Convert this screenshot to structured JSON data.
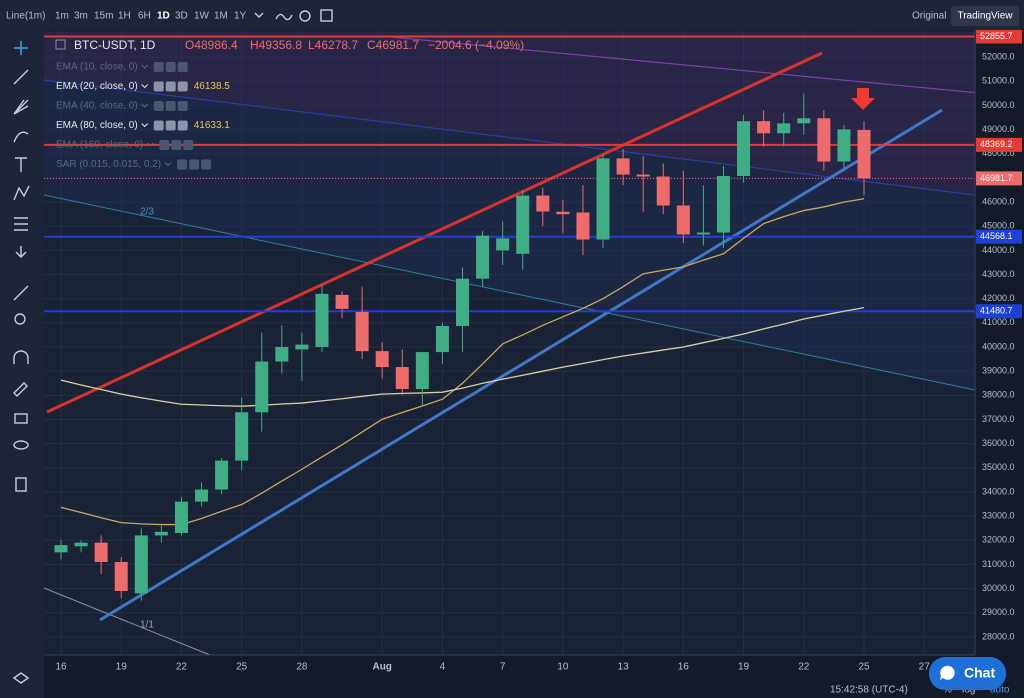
{
  "toolbar": {
    "chart_mode": "Line(1m)",
    "intervals": [
      "1m",
      "3m",
      "15m",
      "1H",
      "6H",
      "1D",
      "3D",
      "1W",
      "1M",
      "1Y"
    ],
    "active_interval": 5,
    "views": [
      "Original",
      "TradingView"
    ],
    "active_view": 1
  },
  "legend": {
    "symbol": "BTC-USDT, 1D",
    "open": "O48986.4",
    "high": "H49356.8",
    "low": "L46278.7",
    "close": "C46981.7",
    "change": "−2004.6 (−4.09%)",
    "indicators": [
      {
        "label": "EMA (10, close, 0)",
        "visible": false
      },
      {
        "label": "EMA (20, close, 0)",
        "value": 46138.5,
        "visible": true
      },
      {
        "label": "EMA (40, close, 0)",
        "visible": false
      },
      {
        "label": "EMA (80, close, 0)",
        "value": 41633.1,
        "visible": true
      },
      {
        "label": "EMA (160, close, 0)",
        "visible": false
      },
      {
        "label": "SAR (0.015, 0.015, 0.2)",
        "visible": false
      }
    ]
  },
  "chart_data": {
    "type": "candlestick",
    "up_color": "#3fae85",
    "down_color": "#ee6b6b",
    "categories": [
      "16",
      null,
      null,
      "19",
      null,
      null,
      "22",
      null,
      null,
      "25",
      null,
      null,
      "28",
      null,
      null,
      null,
      "Aug",
      null,
      null,
      "4",
      null,
      null,
      "7",
      null,
      null,
      "10",
      null,
      null,
      "13",
      null,
      null,
      "16",
      null,
      null,
      "19",
      null,
      null,
      "22",
      null,
      null,
      "25"
    ],
    "x_after": [
      "27"
    ],
    "open": [
      31500,
      31750,
      31900,
      31100,
      29800,
      32200,
      32300,
      33600,
      34100,
      35300,
      37300,
      39400,
      39900,
      40000,
      42160,
      41450,
      39830,
      39170,
      38260,
      39790,
      40870,
      42830,
      44000,
      43860,
      46270,
      45600,
      45570,
      44450,
      47810,
      47140,
      47060,
      45860,
      44660,
      44740,
      47080,
      49350,
      48850,
      49260,
      49470,
      47680,
      48986.4
    ],
    "high": [
      32000,
      32000,
      32200,
      31300,
      32500,
      32600,
      33800,
      34400,
      35400,
      37900,
      40600,
      40900,
      40600,
      42600,
      42300,
      42500,
      40200,
      39900,
      39800,
      41000,
      43300,
      44800,
      45200,
      46500,
      46600,
      46100,
      46700,
      48000,
      48200,
      47900,
      47600,
      47300,
      46700,
      47500,
      49600,
      49800,
      49700,
      50500,
      49800,
      49200,
      49356.8
    ],
    "low": [
      31200,
      31500,
      30600,
      29600,
      29500,
      31900,
      32200,
      33400,
      33900,
      34900,
      36500,
      38900,
      38600,
      39800,
      41200,
      39500,
      38700,
      38000,
      37600,
      39300,
      39800,
      42500,
      43400,
      43200,
      45000,
      44700,
      43800,
      44100,
      46700,
      45600,
      45500,
      44300,
      44200,
      44100,
      46800,
      48300,
      48300,
      48800,
      47300,
      47400,
      46278.7
    ],
    "close": [
      31800,
      31900,
      31100,
      29900,
      32200,
      32350,
      33600,
      34100,
      35300,
      37300,
      39400,
      40000,
      40100,
      42200,
      41580,
      39830,
      39170,
      38260,
      39790,
      40870,
      42830,
      44610,
      44500,
      46270,
      45610,
      45500,
      44450,
      47810,
      47140,
      47060,
      45860,
      44660,
      44740,
      47080,
      49350,
      48850,
      49260,
      49470,
      47680,
      49010,
      46981.7
    ],
    "series": [
      {
        "name": "EMA (20, close, 0)",
        "color": "#c9a85a",
        "values": [
          33360,
          33150,
          32930,
          32730,
          32680,
          32650,
          32650,
          32900,
          33200,
          33480,
          33950,
          34450,
          34940,
          35450,
          35950,
          36480,
          37010,
          37290,
          37560,
          37840,
          38500,
          39300,
          40130,
          40500,
          40900,
          41250,
          41600,
          42000,
          42500,
          43030,
          43180,
          43320,
          43600,
          43860,
          44500,
          45110,
          45400,
          45650,
          45800,
          46000,
          46138.5
        ]
      },
      {
        "name": "EMA (80, close, 0)",
        "color": "#d8cfa6",
        "values": [
          38630,
          38430,
          38240,
          38050,
          37900,
          37760,
          37630,
          37600,
          37570,
          37550,
          37590,
          37640,
          37680,
          37770,
          37860,
          37960,
          38050,
          38080,
          38100,
          38130,
          38300,
          38500,
          38670,
          38830,
          39000,
          39170,
          39320,
          39480,
          39630,
          39750,
          39880,
          40000,
          40180,
          40360,
          40540,
          40750,
          40950,
          41160,
          41320,
          41480,
          41633.1
        ]
      }
    ],
    "price_lines": [
      {
        "value": 52855.7,
        "color": "#e53935",
        "style": "solid"
      },
      {
        "value": 48369.2,
        "color": "#e53935",
        "style": "solid"
      },
      {
        "value": 46981.7,
        "color": "#ee6b6b",
        "style": "dotted"
      },
      {
        "value": 44568.1,
        "color": "#1e3fd8",
        "style": "solid"
      },
      {
        "value": 41480.7,
        "color": "#1e3fd8",
        "style": "solid"
      }
    ],
    "annotations": [
      "2/3",
      "1/1"
    ],
    "ylim": [
      27250,
      53125
    ],
    "yticks": [
      {
        "value": 28000,
        "label": "28000.0"
      },
      {
        "value": 29000,
        "label": "29000.0"
      },
      {
        "value": 30000,
        "label": "30000.0"
      },
      {
        "value": 31000,
        "label": "31000.0"
      },
      {
        "value": 32000,
        "label": "32000.0"
      },
      {
        "value": 33000,
        "label": "33000.0"
      },
      {
        "value": 34000,
        "label": "34000.0"
      },
      {
        "value": 35000,
        "label": "35000.0"
      },
      {
        "value": 36000,
        "label": "36000.0"
      },
      {
        "value": 37000,
        "label": "37000.0"
      },
      {
        "value": 38000,
        "label": "38000.0"
      },
      {
        "value": 39000,
        "label": "39000.0"
      },
      {
        "value": 40000,
        "label": "40000.0"
      },
      {
        "value": 41000,
        "label": "41000.0"
      },
      {
        "value": 42000,
        "label": "42000.0"
      },
      {
        "value": 43000,
        "label": "43000.0"
      },
      {
        "value": 44000,
        "label": "44000.0"
      },
      {
        "value": 45000,
        "label": "45000.0"
      },
      {
        "value": 46000,
        "label": "46000.0"
      },
      {
        "value": 47000,
        "label": "47000.0"
      },
      {
        "value": 48000,
        "label": "48000.0"
      },
      {
        "value": 49000,
        "label": "49000.0"
      },
      {
        "value": 50000,
        "label": "50000.0"
      },
      {
        "value": 51000,
        "label": "51000.0"
      },
      {
        "value": 52000,
        "label": "52000.0"
      }
    ],
    "grid": true
  },
  "status": {
    "time": "15:42:58 (UTC-4)",
    "scale_options": [
      "%",
      "log",
      "auto"
    ],
    "chat": "Chat"
  }
}
